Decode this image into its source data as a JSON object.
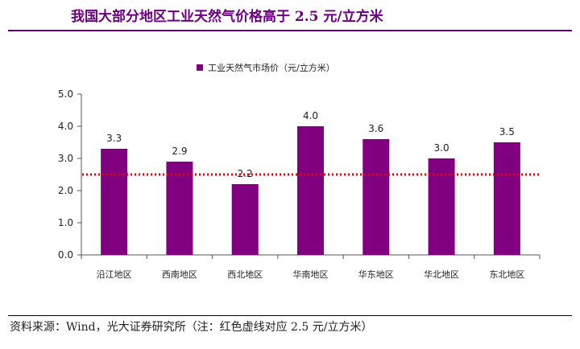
{
  "page": {
    "title": "我国大部分地区工业天然气价格高于 2.5 元/立方米",
    "source": "资料来源：Wind，光大证券研究所（注：红色虚线对应 2.5 元/立方米）"
  },
  "colors": {
    "bar": "#800080",
    "reference_line": "#e8000b",
    "title": "#6a0080",
    "axis": "#555555"
  },
  "chart_data": {
    "type": "bar",
    "categories": [
      "沿江地区",
      "西南地区",
      "西北地区",
      "华南地区",
      "华东地区",
      "华北地区",
      "东北地区"
    ],
    "series": [
      {
        "name": "工业天然气市场价（元/立方米）",
        "values": [
          3.3,
          2.9,
          2.2,
          4.0,
          3.6,
          3.0,
          3.5
        ]
      }
    ],
    "data_labels": [
      "3.3",
      "2.9",
      "2.2",
      "4.0",
      "3.6",
      "3.0",
      "3.5"
    ],
    "ylim": [
      0,
      5
    ],
    "yticks": [
      0,
      1,
      2,
      3,
      4,
      5
    ],
    "ytick_labels": [
      "0.0",
      "1.0",
      "2.0",
      "3.0",
      "4.0",
      "5.0"
    ],
    "reference_line": {
      "value": 2.5,
      "style": "dotted"
    },
    "legend_position": "top-center",
    "grid": false,
    "xlabel": "",
    "ylabel": ""
  }
}
